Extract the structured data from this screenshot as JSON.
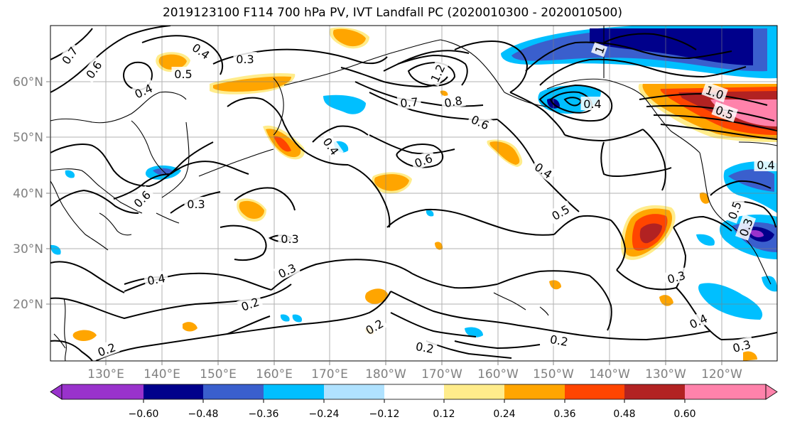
{
  "title": "2019123100 F114 700 hPa PV, IVT Landfall PC (2020010300 - 2020010500)",
  "map": {
    "lon_labels": [
      "130°E",
      "140°E",
      "150°E",
      "160°E",
      "170°E",
      "180°W",
      "170°W",
      "160°W",
      "150°W",
      "140°W",
      "130°W",
      "120°W"
    ],
    "lat_labels": [
      "60°N",
      "50°N",
      "40°N",
      "30°N",
      "20°N"
    ],
    "contour_labels": [
      "0.7",
      "0.6",
      "0.4",
      "0.3",
      "0.5",
      "0.4",
      "0.2",
      "0.3",
      "0.4",
      "0.7",
      "0.8",
      "0.6",
      "1.2",
      "0.4",
      "1",
      "0.6",
      "0.4",
      "0.3",
      "0.6",
      "0.4",
      "0.5",
      "0.3",
      "0.2",
      "0.2",
      "0.2",
      "0.4",
      "0.3",
      "0.5",
      "0.3",
      "0.4",
      "0.3",
      "1.0",
      "0.5",
      "0.2"
    ]
  },
  "colorbar": {
    "tick_labels": [
      "−0.60",
      "−0.48",
      "−0.36",
      "−0.24",
      "−0.12",
      "0.12",
      "0.24",
      "0.36",
      "0.48",
      "0.60"
    ],
    "colors": [
      "#9932cc",
      "#00008b",
      "#3a5fcd",
      "#00bfff",
      "#b0e2ff",
      "#ffffff",
      "#ffec8b",
      "#ffa500",
      "#ff4500",
      "#b22222",
      "#ff82ab"
    ]
  }
}
